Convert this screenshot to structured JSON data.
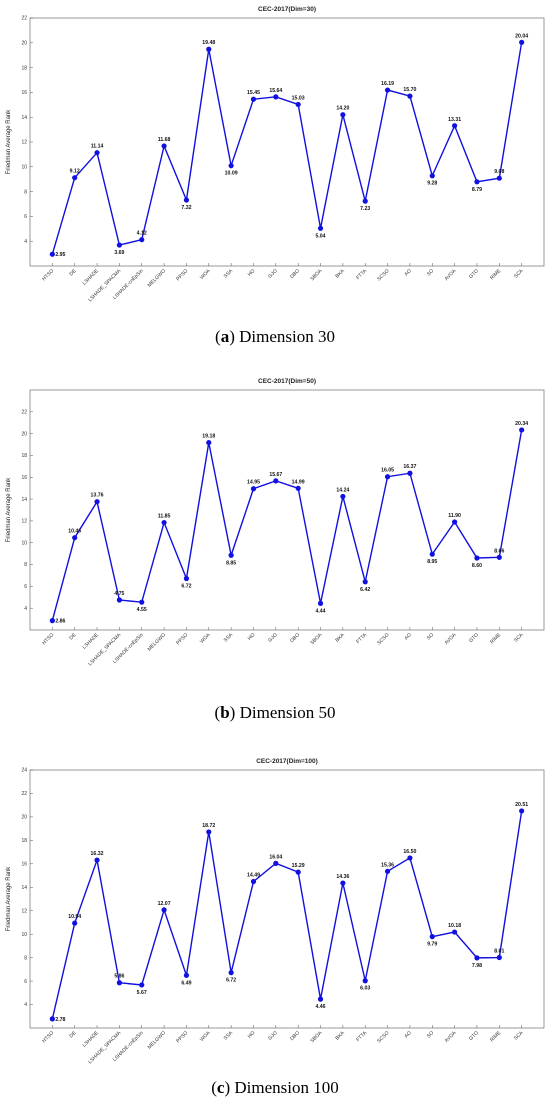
{
  "chart_data": [
    {
      "type": "line",
      "title": "CEC-2017(Dim=30)",
      "ylabel": "Friedman Average Rank",
      "xlabel": "",
      "ylim": [
        2,
        22
      ],
      "yticks": [
        4,
        6,
        8,
        10,
        12,
        14,
        16,
        18,
        20,
        22
      ],
      "categories": [
        "HTSO",
        "DE",
        "LSHADE",
        "LSHADE_SPACMA",
        "LSHADE-cnEpSin",
        "MELGWO",
        "PPSO",
        "WOA",
        "SSA",
        "HO",
        "GJO",
        "DBO",
        "SBOA",
        "BKA",
        "FTTA",
        "SCSO",
        "AO",
        "SO",
        "AVOA",
        "GTO",
        "RIME",
        "SCA"
      ],
      "values": [
        2.95,
        9.12,
        11.14,
        3.69,
        4.12,
        11.68,
        7.32,
        19.48,
        10.09,
        15.45,
        15.64,
        15.03,
        5.04,
        14.2,
        7.23,
        16.19,
        15.7,
        9.28,
        13.31,
        8.79,
        9.08,
        20.04
      ],
      "labels": [
        "2.95",
        "9.12",
        "11.14",
        "3.69",
        "4.12",
        "11.68",
        "7.32",
        "19.48",
        "10.09",
        "15.45",
        "15.64",
        "15.03",
        "5.04",
        "14.20",
        "7.23",
        "16.19",
        "15.70",
        "9.28",
        "13.31",
        "8.79",
        "9.08",
        "20.04"
      ],
      "color": "#1010e0",
      "grid": false
    },
    {
      "type": "line",
      "title": "CEC-2017(Dim=50)",
      "ylabel": "Friedman Average Rank",
      "xlabel": "",
      "ylim": [
        2,
        24
      ],
      "yticks": [
        4,
        6,
        8,
        10,
        12,
        14,
        16,
        18,
        20,
        22
      ],
      "categories": [
        "HTSO",
        "DE",
        "LSHADE",
        "LSHADE_SPACMA",
        "LSHADE-cnEpSin",
        "MELGWO",
        "PPSO",
        "WOA",
        "SSA",
        "HO",
        "GJO",
        "DBO",
        "SBOA",
        "BKA",
        "FTTA",
        "SCSO",
        "AO",
        "SO",
        "AVOA",
        "GTO",
        "RIME",
        "SCA"
      ],
      "values": [
        2.86,
        10.46,
        13.76,
        4.75,
        4.55,
        11.85,
        6.72,
        19.18,
        8.85,
        14.95,
        15.67,
        14.99,
        4.44,
        14.24,
        6.42,
        16.05,
        16.37,
        8.95,
        11.9,
        8.6,
        8.66,
        20.34
      ],
      "labels": [
        "2.86",
        "10.46",
        "13.76",
        "4.75",
        "4.55",
        "11.85",
        "6.72",
        "19.18",
        "8.85",
        "14.95",
        "15.67",
        "14.99",
        "4.44",
        "14.24",
        "6.42",
        "16.05",
        "16.37",
        "8.95",
        "11.90",
        "8.60",
        "8.66",
        "20.34"
      ],
      "color": "#1010e0",
      "grid": false
    },
    {
      "type": "line",
      "title": "CEC-2017(Dim=100)",
      "ylabel": "Friedman Average Rank",
      "xlabel": "",
      "ylim": [
        2,
        24
      ],
      "yticks": [
        4,
        6,
        8,
        10,
        12,
        14,
        16,
        18,
        20,
        22,
        24
      ],
      "categories": [
        "HTSO",
        "DE",
        "LSHADE",
        "LSHADE_SPACMA",
        "LSHADE-cnEpSin",
        "MELGWO",
        "PPSO",
        "WOA",
        "SSA",
        "HO",
        "GJO",
        "DBO",
        "SBOA",
        "BKA",
        "FTTA",
        "SCSO",
        "AO",
        "SO",
        "AVOA",
        "GTO",
        "RIME",
        "SCA"
      ],
      "values": [
        2.78,
        10.94,
        16.32,
        5.86,
        5.67,
        12.07,
        6.49,
        18.72,
        6.72,
        14.49,
        16.04,
        15.29,
        4.46,
        14.36,
        6.03,
        15.36,
        16.5,
        9.79,
        10.18,
        7.98,
        8.01,
        20.51
      ],
      "labels": [
        "2.78",
        "10.94",
        "16.32",
        "5.86",
        "5.67",
        "12.07",
        "6.49",
        "18.72",
        "6.72",
        "14.49",
        "16.04",
        "15.29",
        "4.46",
        "14.36",
        "6.03",
        "15.36",
        "16.50",
        "9.79",
        "10.18",
        "7.98",
        "8.01",
        "20.51"
      ],
      "color": "#1010e0",
      "grid": false
    }
  ],
  "captions": [
    {
      "letter": "a",
      "text": "Dimension 30"
    },
    {
      "letter": "b",
      "text": "Dimension 50"
    },
    {
      "letter": "c",
      "text": "Dimension 100"
    }
  ]
}
